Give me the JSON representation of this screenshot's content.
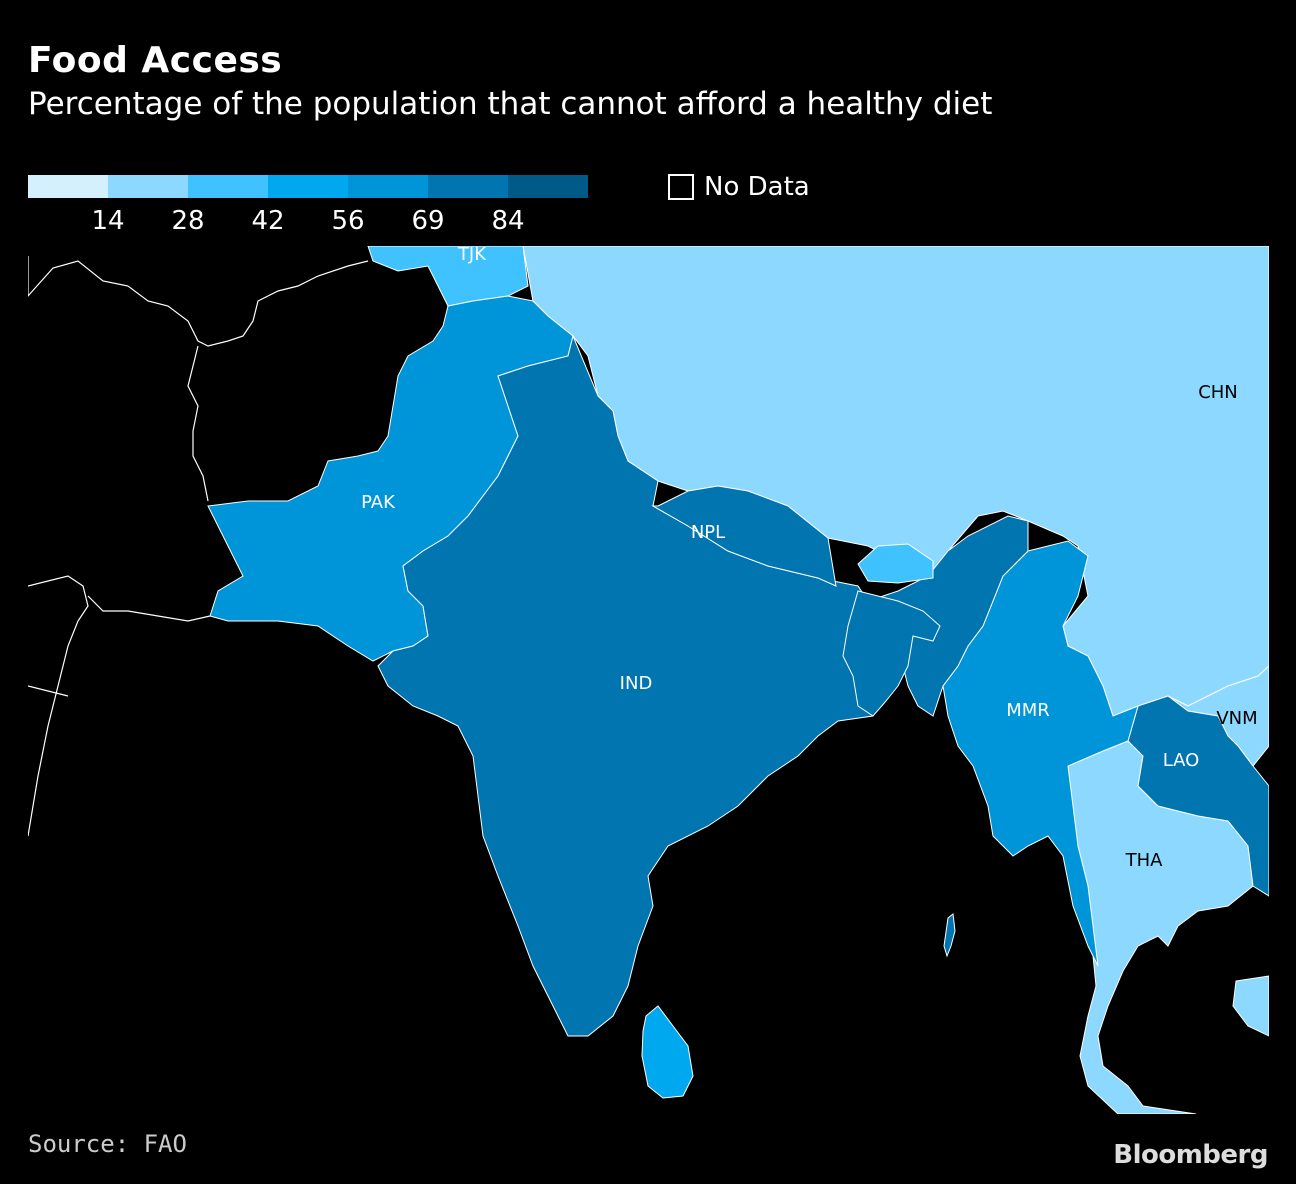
{
  "title": "Food Access",
  "subtitle": "Percentage of the population that cannot afford a healthy diet",
  "legend": {
    "colors": [
      "#d4f0ff",
      "#8cd8ff",
      "#40c2ff",
      "#00a8f0",
      "#0095d8",
      "#0075b0",
      "#005a88"
    ],
    "ticks": [
      "14",
      "28",
      "42",
      "56",
      "69",
      "84"
    ],
    "no_data_label": "No Data"
  },
  "countries": {
    "TJK": {
      "label": "TJK",
      "color": "#40c2ff"
    },
    "PAK": {
      "label": "PAK",
      "color": "#0095d8"
    },
    "IND": {
      "label": "IND",
      "color": "#0075b0"
    },
    "NPL": {
      "label": "NPL",
      "color": "#0075b0"
    },
    "CHN": {
      "label": "CHN",
      "color": "#8cd8ff"
    },
    "MMR": {
      "label": "MMR",
      "color": "#0095d8"
    },
    "LAO": {
      "label": "LAO",
      "color": "#0075b0"
    },
    "VNM": {
      "label": "VNM",
      "color": "#8cd8ff"
    },
    "THA": {
      "label": "THA",
      "color": "#8cd8ff"
    },
    "BTN": {
      "color": "#40c2ff"
    },
    "LKA": {
      "color": "#00a8f0"
    },
    "BGD": {
      "color": "#0075b0"
    }
  },
  "source": "Source: FAO",
  "brand": "Bloomberg"
}
